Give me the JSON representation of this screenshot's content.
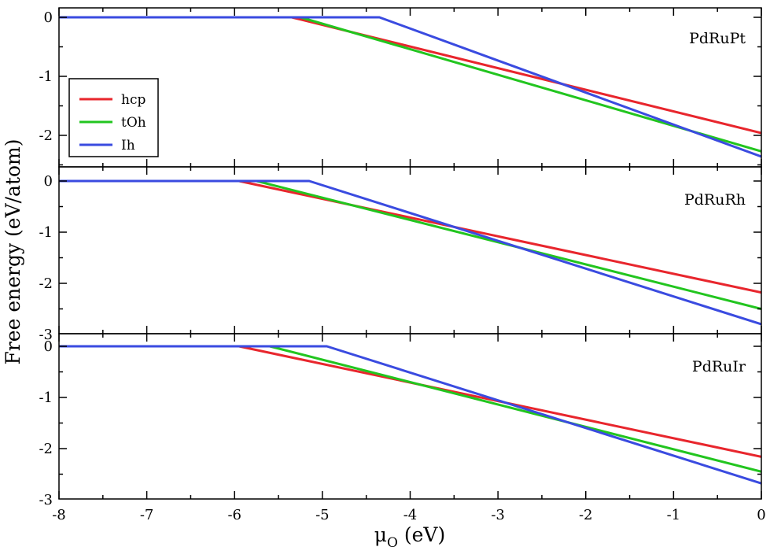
{
  "chart_data": {
    "type": "line",
    "xlabel_main": "μ",
    "xlabel_sub": "O",
    "xlabel_unit": " (eV)",
    "ylabel": "Free energy (eV/atom)",
    "xlim": [
      -8,
      0
    ],
    "x_ticks": [
      "-8",
      "-7",
      "-6",
      "-5",
      "-4",
      "-3",
      "-2",
      "-1",
      "0"
    ],
    "colors": {
      "hcp": "#e8262d",
      "tOh": "#22c51f",
      "Ih": "#3a4be0"
    },
    "legend": {
      "position": "upper-left of top panel",
      "entries": [
        {
          "name": "hcp",
          "color": "#e8262d"
        },
        {
          "name": "tOh",
          "color": "#22c51f"
        },
        {
          "name": "Ih",
          "color": "#3a4be0"
        }
      ]
    },
    "panels": [
      {
        "label": "PdRuPt",
        "ylim": [
          -2.4,
          0.1
        ],
        "y_ticks": [
          "0",
          "-1",
          "-2"
        ],
        "series": [
          {
            "name": "hcp",
            "x": [
              -8,
              -5.35,
              0
            ],
            "y": [
              0,
              0,
              -1.96
            ]
          },
          {
            "name": "tOh",
            "x": [
              -8,
              -5.25,
              0
            ],
            "y": [
              0,
              0,
              -2.27
            ]
          },
          {
            "name": "Ih",
            "x": [
              -8,
              -4.35,
              0
            ],
            "y": [
              0,
              0,
              -2.36
            ]
          }
        ]
      },
      {
        "label": "PdRuRh",
        "ylim": [
          -3.0,
          0.1
        ],
        "y_ticks": [
          "0",
          "-1",
          "-2",
          "-3"
        ],
        "series": [
          {
            "name": "hcp",
            "x": [
              -8,
              -5.95,
              0
            ],
            "y": [
              0,
              0,
              -2.18
            ]
          },
          {
            "name": "tOh",
            "x": [
              -8,
              -5.75,
              0
            ],
            "y": [
              0,
              0,
              -2.5
            ]
          },
          {
            "name": "Ih",
            "x": [
              -8,
              -5.15,
              0
            ],
            "y": [
              0,
              0,
              -2.8
            ]
          }
        ]
      },
      {
        "label": "PdRuIr",
        "ylim": [
          -3.0,
          0.1
        ],
        "y_ticks": [
          "0",
          "-1",
          "-2",
          "-3"
        ],
        "series": [
          {
            "name": "hcp",
            "x": [
              -8,
              -5.95,
              0
            ],
            "y": [
              0,
              0,
              -2.16
            ]
          },
          {
            "name": "tOh",
            "x": [
              -8,
              -5.6,
              0
            ],
            "y": [
              0,
              0,
              -2.45
            ]
          },
          {
            "name": "Ih",
            "x": [
              -8,
              -4.95,
              0
            ],
            "y": [
              0,
              0,
              -2.68
            ]
          }
        ]
      }
    ]
  }
}
